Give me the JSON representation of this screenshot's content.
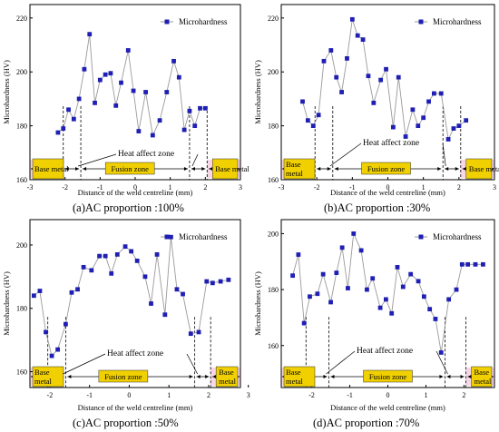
{
  "legend_label": "Microhardness",
  "zone_text": {
    "haz": "Heat affect zone",
    "base_metal": "Base metal",
    "fusion": "Fusion zone"
  },
  "colors": {
    "marker": "#1f1fb4",
    "line": "#9a9a9a",
    "label_fill": "#f0d000",
    "zone_band": "#f7d6e8"
  },
  "chart_data": [
    {
      "type": "line",
      "caption": "(a)AC proportion :100%",
      "xlabel": "Distance of the weld centreline (mm)",
      "ylabel": "Microhardness (HV)",
      "xlim": [
        -3,
        3
      ],
      "ylim": [
        160,
        225
      ],
      "xticks": [
        -3,
        -2,
        -1,
        0,
        1,
        2,
        3
      ],
      "yticks": [
        160,
        180,
        200,
        220
      ],
      "base_metal_label": "Base metal",
      "series": [
        {
          "name": "Microhardness",
          "x": [
            -2.2,
            -2.05,
            -1.9,
            -1.75,
            -1.6,
            -1.45,
            -1.3,
            -1.15,
            -1.0,
            -0.85,
            -0.7,
            -0.55,
            -0.4,
            -0.2,
            -0.05,
            0.1,
            0.3,
            0.5,
            0.7,
            0.9,
            1.1,
            1.25,
            1.4,
            1.55,
            1.7,
            1.85,
            2.0
          ],
          "y": [
            177.5,
            179,
            186,
            182.5,
            190,
            201,
            214,
            188.5,
            197,
            199,
            199.5,
            187.5,
            196,
            208,
            193,
            178,
            192.5,
            176.5,
            182,
            192.5,
            204,
            198,
            178.5,
            185.5,
            180,
            186.5,
            186.5
          ]
        }
      ]
    },
    {
      "type": "line",
      "caption": "(b)AC proportion :30%",
      "xlabel": "Distance of the weld centreline (mm)",
      "ylabel": "Microhardness (HV)",
      "xlim": [
        -3,
        3
      ],
      "ylim": [
        160,
        225
      ],
      "xticks": [
        -3,
        -2,
        -1,
        0,
        1,
        2,
        3
      ],
      "yticks": [
        160,
        180,
        200,
        220
      ],
      "base_metal_label": "Base metal",
      "series": [
        {
          "name": "Microhardness",
          "x": [
            -2.4,
            -2.25,
            -2.1,
            -1.95,
            -1.8,
            -1.6,
            -1.45,
            -1.3,
            -1.15,
            -1.0,
            -0.85,
            -0.7,
            -0.55,
            -0.4,
            -0.2,
            -0.05,
            0.15,
            0.3,
            0.5,
            0.7,
            0.85,
            1.0,
            1.15,
            1.3,
            1.5,
            1.7,
            1.85,
            2.0,
            2.2
          ],
          "y": [
            189,
            182,
            180,
            184,
            204,
            208,
            198,
            192.5,
            205,
            219.5,
            213.5,
            212,
            198.5,
            188.5,
            197,
            201,
            179.5,
            198,
            176,
            186,
            180,
            183,
            189,
            192,
            192,
            175,
            179,
            180,
            182
          ]
        }
      ]
    },
    {
      "type": "line",
      "caption": "(c)AC proportion :50%",
      "xlabel": "Distance of the weld centreline (mm)",
      "ylabel": "Microhardness (HV)",
      "xlim": [
        -2.5,
        2.8
      ],
      "ylim": [
        155,
        208
      ],
      "xticks": [
        -2,
        -1,
        0,
        1,
        2,
        3
      ],
      "yticks": [
        160,
        180,
        200
      ],
      "base_metal_label": "Base metal",
      "series": [
        {
          "name": "Microhardness",
          "x": [
            -2.4,
            -2.25,
            -2.1,
            -1.95,
            -1.8,
            -1.6,
            -1.45,
            -1.3,
            -1.15,
            -0.95,
            -0.75,
            -0.6,
            -0.45,
            -0.3,
            -0.1,
            0.05,
            0.2,
            0.4,
            0.55,
            0.7,
            0.9,
            1.05,
            1.2,
            1.35,
            1.55,
            1.75,
            1.95,
            2.1,
            2.3,
            2.5
          ],
          "y": [
            184,
            185.5,
            172.5,
            165,
            167,
            175,
            185,
            186,
            193,
            192,
            196.5,
            196.5,
            191,
            197,
            199.5,
            198,
            195,
            190,
            181.5,
            197,
            178,
            202.5,
            186,
            184.5,
            172,
            172.5,
            188.5,
            188,
            188.5,
            189
          ]
        }
      ]
    },
    {
      "type": "line",
      "caption": "(d)AC proportion :70%",
      "xlabel": "Distance of the weld centreline (mm)",
      "ylabel": "Microhardness (HV)",
      "xlim": [
        -2.8,
        2.8
      ],
      "ylim": [
        145,
        205
      ],
      "xticks": [
        -2,
        -1,
        0,
        1,
        2
      ],
      "yticks": [
        160,
        180,
        200
      ],
      "base_metal_label": "Base metal",
      "series": [
        {
          "name": "Microhardness",
          "x": [
            -2.5,
            -2.35,
            -2.2,
            -2.05,
            -1.85,
            -1.7,
            -1.5,
            -1.35,
            -1.2,
            -1.05,
            -0.9,
            -0.7,
            -0.55,
            -0.4,
            -0.2,
            -0.05,
            0.1,
            0.25,
            0.4,
            0.6,
            0.8,
            0.95,
            1.1,
            1.25,
            1.4,
            1.6,
            1.8,
            1.95,
            2.1,
            2.3,
            2.5
          ],
          "y": [
            185,
            192.5,
            168,
            177.5,
            178.5,
            185.5,
            175.5,
            186,
            195,
            180.5,
            200,
            194,
            180,
            184,
            173.5,
            176.5,
            171.5,
            188,
            181,
            185.5,
            183,
            177.5,
            173,
            169.5,
            157.5,
            176.5,
            180,
            189,
            189,
            189,
            189
          ]
        }
      ]
    }
  ]
}
